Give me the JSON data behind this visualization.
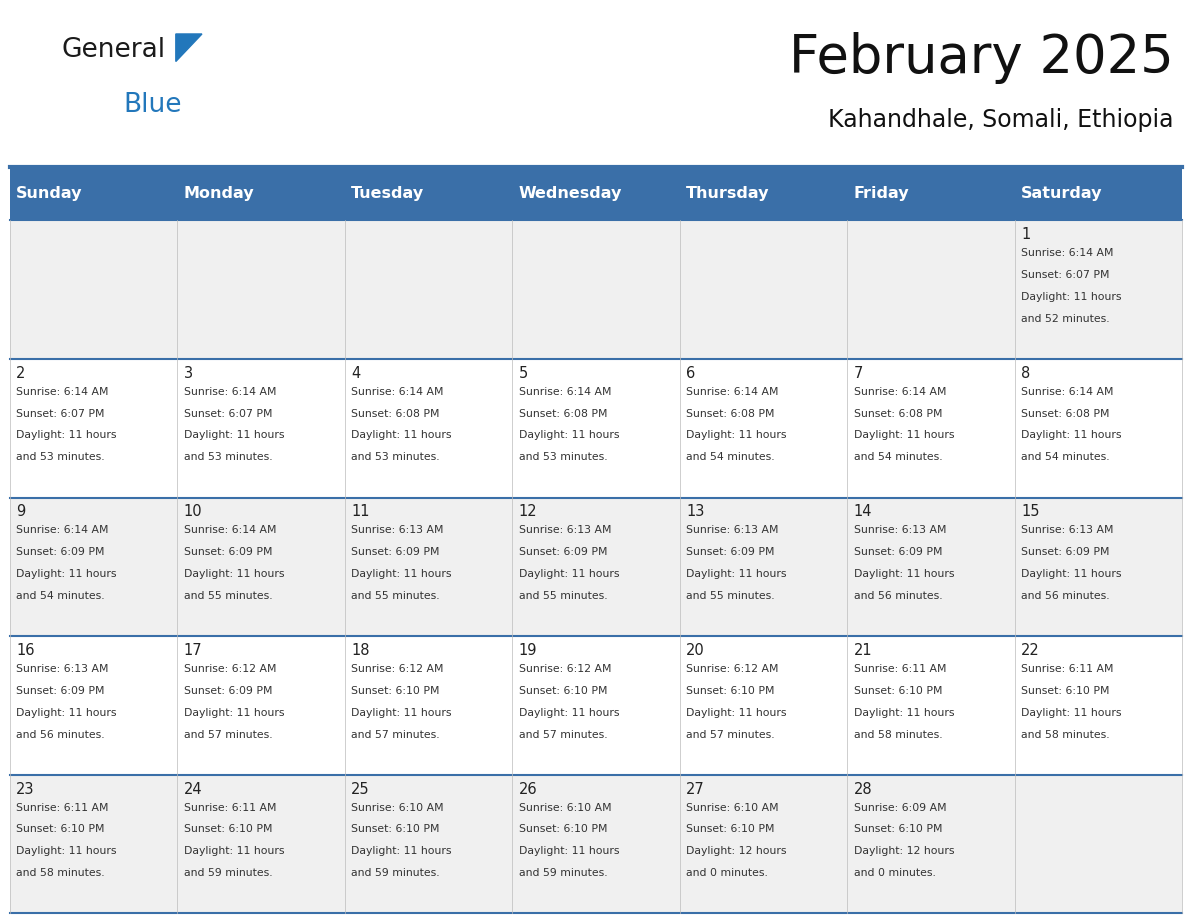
{
  "title": "February 2025",
  "subtitle": "Kahandhale, Somali, Ethiopia",
  "days_of_week": [
    "Sunday",
    "Monday",
    "Tuesday",
    "Wednesday",
    "Thursday",
    "Friday",
    "Saturday"
  ],
  "header_bg": "#3a6fa8",
  "header_text": "#ffffff",
  "cell_bg_odd": "#f0f0f0",
  "cell_bg_even": "#ffffff",
  "border_color": "#3a6fa8",
  "text_color": "#222222",
  "figsize": [
    11.88,
    9.18
  ],
  "dpi": 100,
  "calendar": [
    [
      null,
      null,
      null,
      null,
      null,
      null,
      {
        "day": 1,
        "sunrise": "6:14 AM",
        "sunset": "6:07 PM",
        "dl1": "Daylight: 11 hours",
        "dl2": "and 52 minutes."
      }
    ],
    [
      {
        "day": 2,
        "sunrise": "6:14 AM",
        "sunset": "6:07 PM",
        "dl1": "Daylight: 11 hours",
        "dl2": "and 53 minutes."
      },
      {
        "day": 3,
        "sunrise": "6:14 AM",
        "sunset": "6:07 PM",
        "dl1": "Daylight: 11 hours",
        "dl2": "and 53 minutes."
      },
      {
        "day": 4,
        "sunrise": "6:14 AM",
        "sunset": "6:08 PM",
        "dl1": "Daylight: 11 hours",
        "dl2": "and 53 minutes."
      },
      {
        "day": 5,
        "sunrise": "6:14 AM",
        "sunset": "6:08 PM",
        "dl1": "Daylight: 11 hours",
        "dl2": "and 53 minutes."
      },
      {
        "day": 6,
        "sunrise": "6:14 AM",
        "sunset": "6:08 PM",
        "dl1": "Daylight: 11 hours",
        "dl2": "and 54 minutes."
      },
      {
        "day": 7,
        "sunrise": "6:14 AM",
        "sunset": "6:08 PM",
        "dl1": "Daylight: 11 hours",
        "dl2": "and 54 minutes."
      },
      {
        "day": 8,
        "sunrise": "6:14 AM",
        "sunset": "6:08 PM",
        "dl1": "Daylight: 11 hours",
        "dl2": "and 54 minutes."
      }
    ],
    [
      {
        "day": 9,
        "sunrise": "6:14 AM",
        "sunset": "6:09 PM",
        "dl1": "Daylight: 11 hours",
        "dl2": "and 54 minutes."
      },
      {
        "day": 10,
        "sunrise": "6:14 AM",
        "sunset": "6:09 PM",
        "dl1": "Daylight: 11 hours",
        "dl2": "and 55 minutes."
      },
      {
        "day": 11,
        "sunrise": "6:13 AM",
        "sunset": "6:09 PM",
        "dl1": "Daylight: 11 hours",
        "dl2": "and 55 minutes."
      },
      {
        "day": 12,
        "sunrise": "6:13 AM",
        "sunset": "6:09 PM",
        "dl1": "Daylight: 11 hours",
        "dl2": "and 55 minutes."
      },
      {
        "day": 13,
        "sunrise": "6:13 AM",
        "sunset": "6:09 PM",
        "dl1": "Daylight: 11 hours",
        "dl2": "and 55 minutes."
      },
      {
        "day": 14,
        "sunrise": "6:13 AM",
        "sunset": "6:09 PM",
        "dl1": "Daylight: 11 hours",
        "dl2": "and 56 minutes."
      },
      {
        "day": 15,
        "sunrise": "6:13 AM",
        "sunset": "6:09 PM",
        "dl1": "Daylight: 11 hours",
        "dl2": "and 56 minutes."
      }
    ],
    [
      {
        "day": 16,
        "sunrise": "6:13 AM",
        "sunset": "6:09 PM",
        "dl1": "Daylight: 11 hours",
        "dl2": "and 56 minutes."
      },
      {
        "day": 17,
        "sunrise": "6:12 AM",
        "sunset": "6:09 PM",
        "dl1": "Daylight: 11 hours",
        "dl2": "and 57 minutes."
      },
      {
        "day": 18,
        "sunrise": "6:12 AM",
        "sunset": "6:10 PM",
        "dl1": "Daylight: 11 hours",
        "dl2": "and 57 minutes."
      },
      {
        "day": 19,
        "sunrise": "6:12 AM",
        "sunset": "6:10 PM",
        "dl1": "Daylight: 11 hours",
        "dl2": "and 57 minutes."
      },
      {
        "day": 20,
        "sunrise": "6:12 AM",
        "sunset": "6:10 PM",
        "dl1": "Daylight: 11 hours",
        "dl2": "and 57 minutes."
      },
      {
        "day": 21,
        "sunrise": "6:11 AM",
        "sunset": "6:10 PM",
        "dl1": "Daylight: 11 hours",
        "dl2": "and 58 minutes."
      },
      {
        "day": 22,
        "sunrise": "6:11 AM",
        "sunset": "6:10 PM",
        "dl1": "Daylight: 11 hours",
        "dl2": "and 58 minutes."
      }
    ],
    [
      {
        "day": 23,
        "sunrise": "6:11 AM",
        "sunset": "6:10 PM",
        "dl1": "Daylight: 11 hours",
        "dl2": "and 58 minutes."
      },
      {
        "day": 24,
        "sunrise": "6:11 AM",
        "sunset": "6:10 PM",
        "dl1": "Daylight: 11 hours",
        "dl2": "and 59 minutes."
      },
      {
        "day": 25,
        "sunrise": "6:10 AM",
        "sunset": "6:10 PM",
        "dl1": "Daylight: 11 hours",
        "dl2": "and 59 minutes."
      },
      {
        "day": 26,
        "sunrise": "6:10 AM",
        "sunset": "6:10 PM",
        "dl1": "Daylight: 11 hours",
        "dl2": "and 59 minutes."
      },
      {
        "day": 27,
        "sunrise": "6:10 AM",
        "sunset": "6:10 PM",
        "dl1": "Daylight: 12 hours",
        "dl2": "and 0 minutes."
      },
      {
        "day": 28,
        "sunrise": "6:09 AM",
        "sunset": "6:10 PM",
        "dl1": "Daylight: 12 hours",
        "dl2": "and 0 minutes."
      },
      null
    ]
  ]
}
